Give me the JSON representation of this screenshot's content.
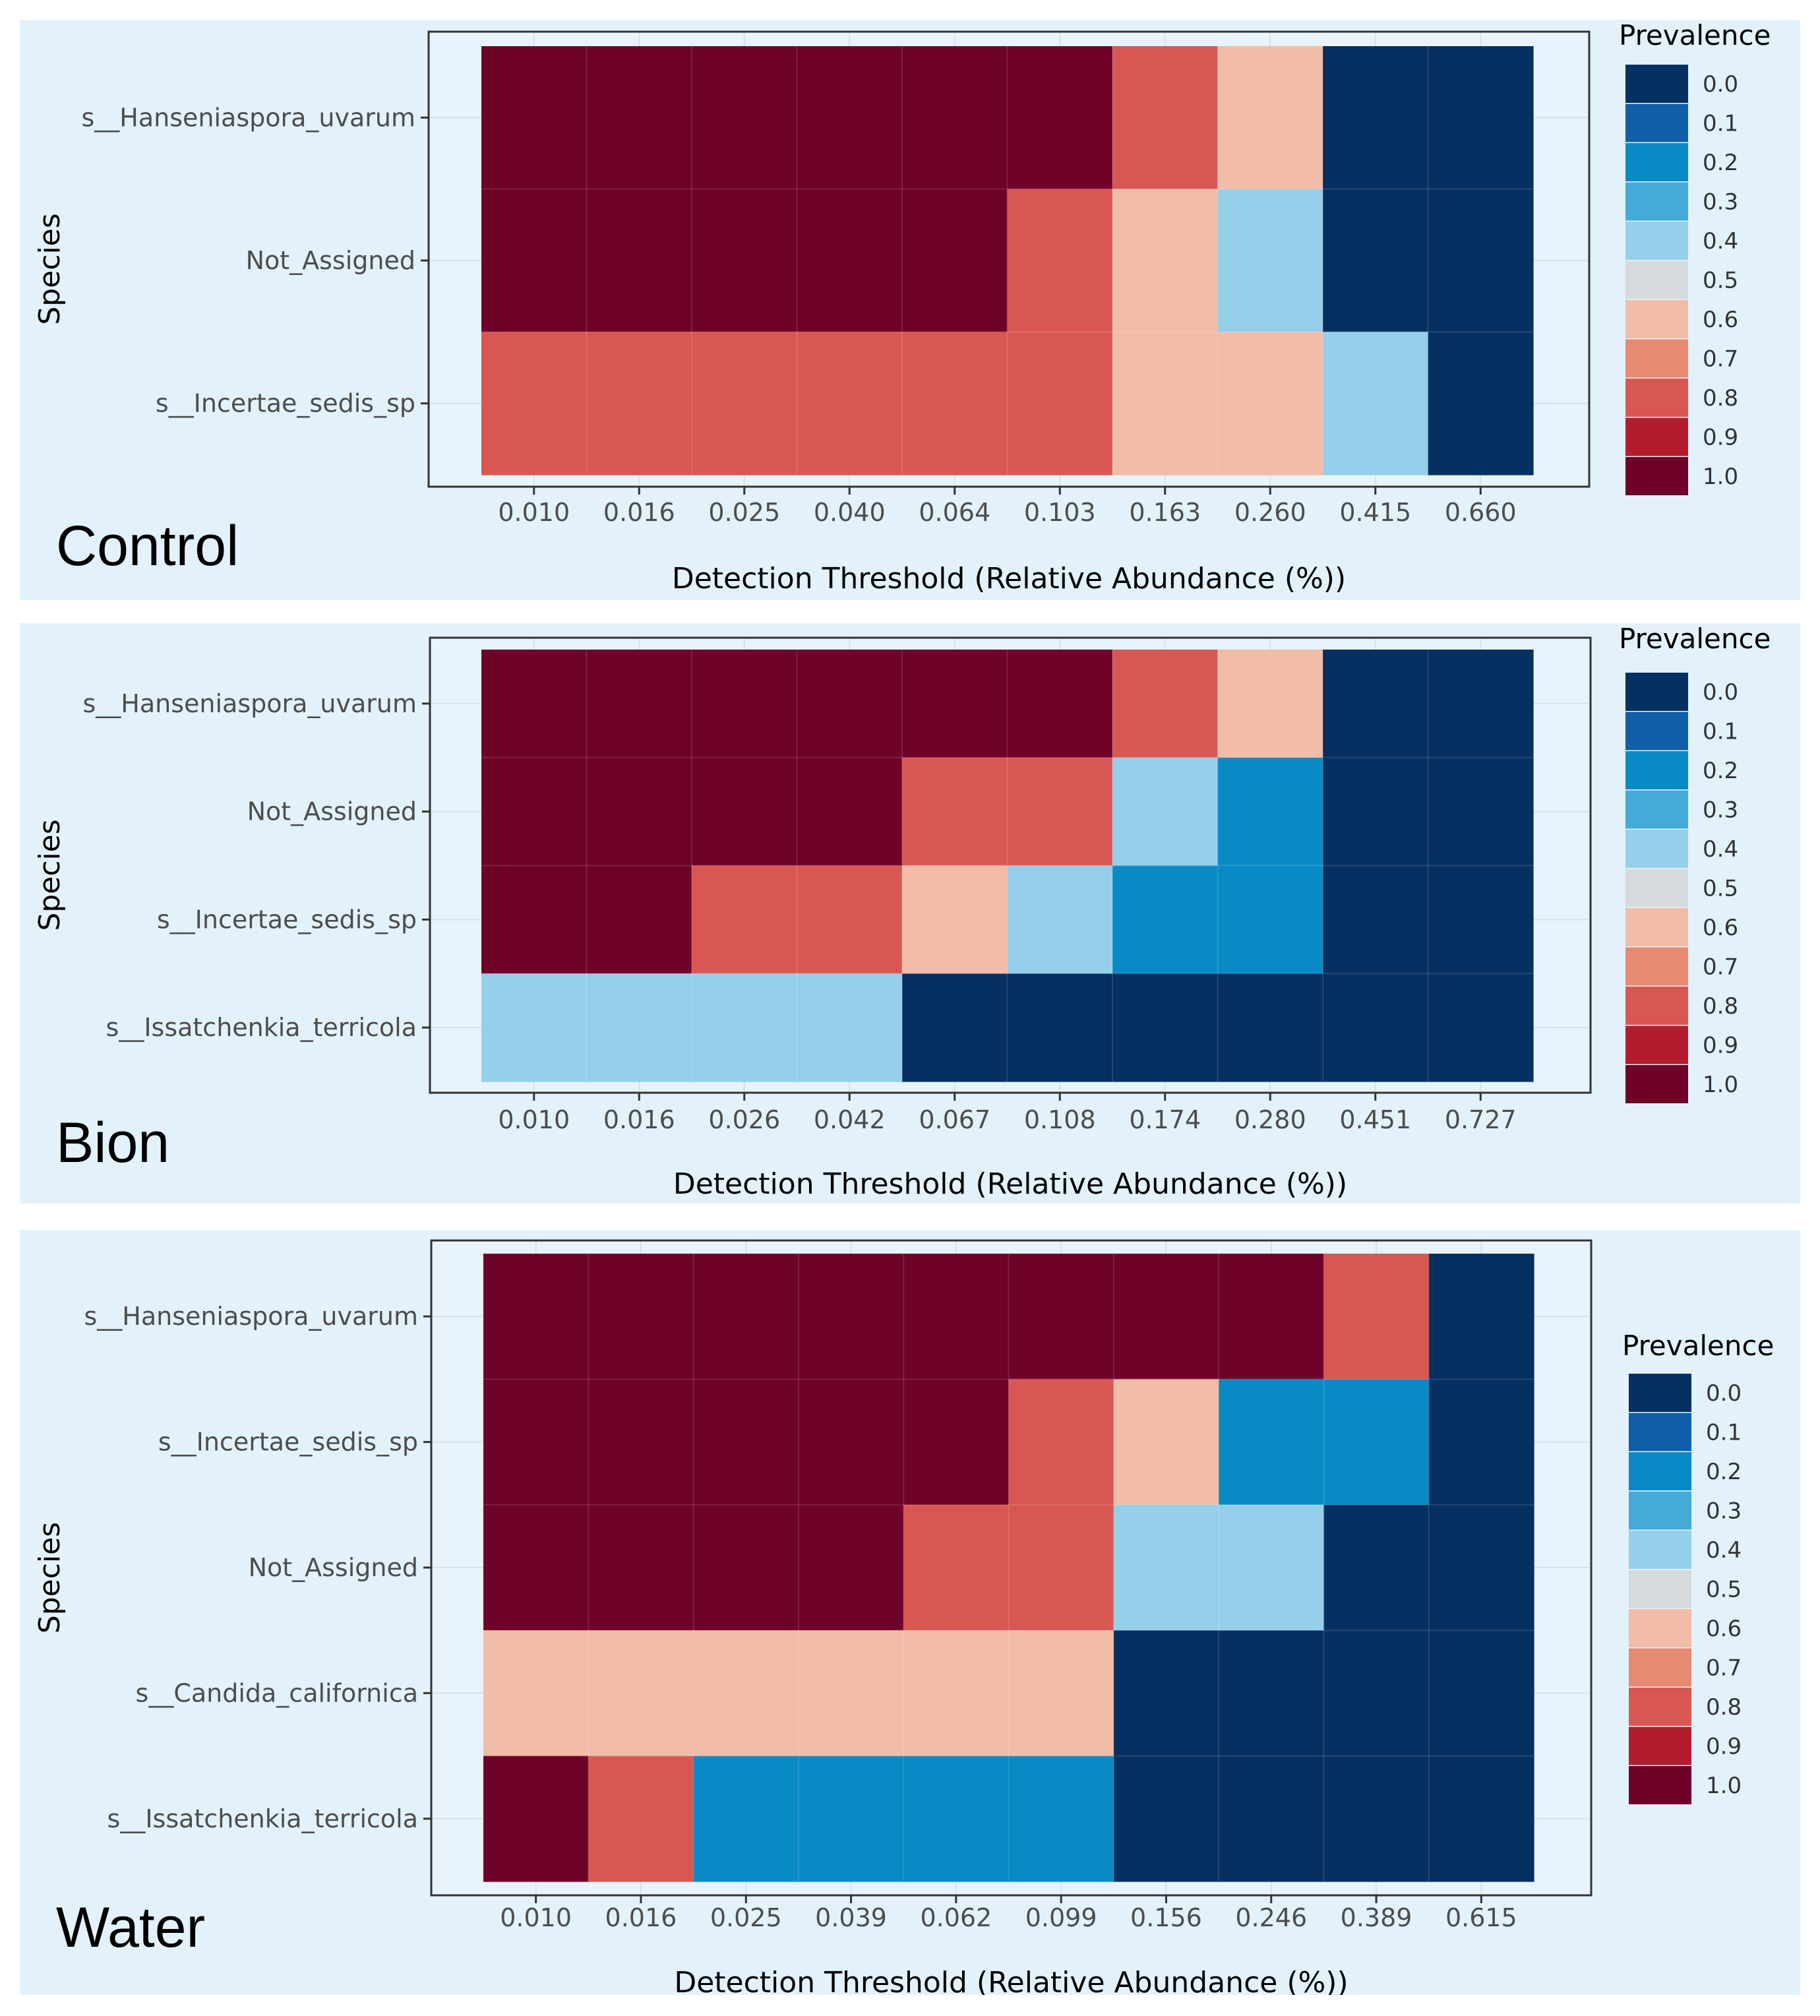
{
  "chart_data": [
    {
      "type": "heatmap",
      "group_label": "Control",
      "xlabel": "Detection Threshold (Relative Abundance (%))",
      "ylabel": "Species",
      "x_ticks": [
        "0.010",
        "0.016",
        "0.025",
        "0.040",
        "0.064",
        "0.103",
        "0.163",
        "0.260",
        "0.415",
        "0.660"
      ],
      "y_categories": [
        "s__Hanseniaspora_uvarum",
        "Not_Assigned",
        "s__Incertae_sedis_sp"
      ],
      "values": [
        [
          1.0,
          1.0,
          1.0,
          1.0,
          1.0,
          1.0,
          0.8,
          0.6,
          0.0,
          0.0
        ],
        [
          1.0,
          1.0,
          1.0,
          1.0,
          1.0,
          0.8,
          0.6,
          0.4,
          0.0,
          0.0
        ],
        [
          0.8,
          0.8,
          0.8,
          0.8,
          0.8,
          0.8,
          0.6,
          0.6,
          0.4,
          0.0
        ]
      ],
      "legend": {
        "title": "Prevalence",
        "labels": [
          "0.0",
          "0.1",
          "0.2",
          "0.3",
          "0.4",
          "0.5",
          "0.6",
          "0.7",
          "0.8",
          "0.9",
          "1.0"
        ],
        "placement": "right"
      }
    },
    {
      "type": "heatmap",
      "group_label": "Bion",
      "xlabel": "Detection Threshold (Relative Abundance (%))",
      "ylabel": "Species",
      "x_ticks": [
        "0.010",
        "0.016",
        "0.026",
        "0.042",
        "0.067",
        "0.108",
        "0.174",
        "0.280",
        "0.451",
        "0.727"
      ],
      "y_categories": [
        "s__Hanseniaspora_uvarum",
        "Not_Assigned",
        "s__Incertae_sedis_sp",
        "s__Issatchenkia_terricola"
      ],
      "values": [
        [
          1.0,
          1.0,
          1.0,
          1.0,
          1.0,
          1.0,
          0.8,
          0.6,
          0.0,
          0.0
        ],
        [
          1.0,
          1.0,
          1.0,
          1.0,
          0.8,
          0.8,
          0.4,
          0.2,
          0.0,
          0.0
        ],
        [
          1.0,
          1.0,
          0.8,
          0.8,
          0.6,
          0.4,
          0.2,
          0.2,
          0.0,
          0.0
        ],
        [
          0.4,
          0.4,
          0.4,
          0.4,
          0.0,
          0.0,
          0.0,
          0.0,
          0.0,
          0.0
        ]
      ],
      "legend": {
        "title": "Prevalence",
        "labels": [
          "0.0",
          "0.1",
          "0.2",
          "0.3",
          "0.4",
          "0.5",
          "0.6",
          "0.7",
          "0.8",
          "0.9",
          "1.0"
        ],
        "placement": "right"
      }
    },
    {
      "type": "heatmap",
      "group_label": "Water",
      "xlabel": "Detection Threshold (Relative Abundance (%))",
      "ylabel": "Species",
      "x_ticks": [
        "0.010",
        "0.016",
        "0.025",
        "0.039",
        "0.062",
        "0.099",
        "0.156",
        "0.246",
        "0.389",
        "0.615"
      ],
      "y_categories": [
        "s__Hanseniaspora_uvarum",
        "s__Incertae_sedis_sp",
        "Not_Assigned",
        "s__Candida_californica",
        "s__Issatchenkia_terricola"
      ],
      "values": [
        [
          1.0,
          1.0,
          1.0,
          1.0,
          1.0,
          1.0,
          1.0,
          1.0,
          0.8,
          0.0
        ],
        [
          1.0,
          1.0,
          1.0,
          1.0,
          1.0,
          0.8,
          0.6,
          0.2,
          0.2,
          0.0
        ],
        [
          1.0,
          1.0,
          1.0,
          1.0,
          0.8,
          0.8,
          0.4,
          0.4,
          0.0,
          0.0
        ],
        [
          0.6,
          0.6,
          0.6,
          0.6,
          0.6,
          0.6,
          0.0,
          0.0,
          0.0,
          0.0
        ],
        [
          1.0,
          0.8,
          0.2,
          0.2,
          0.2,
          0.2,
          0.0,
          0.0,
          0.0,
          0.0
        ]
      ],
      "legend": {
        "title": "Prevalence",
        "labels": [
          "0.0",
          "0.1",
          "0.2",
          "0.3",
          "0.4",
          "0.5",
          "0.6",
          "0.7",
          "0.8",
          "0.9",
          "1.0"
        ],
        "placement": "right"
      }
    }
  ],
  "colors": {
    "panel_background": "#e3f1fb",
    "scale": [
      "#053061",
      "#0f5fa8",
      "#0a8ac4",
      "#44abd8",
      "#95cfea",
      "#d6dadd",
      "#f1bca8",
      "#e68a72",
      "#d85753",
      "#b31c2e",
      "#6f0229"
    ]
  }
}
